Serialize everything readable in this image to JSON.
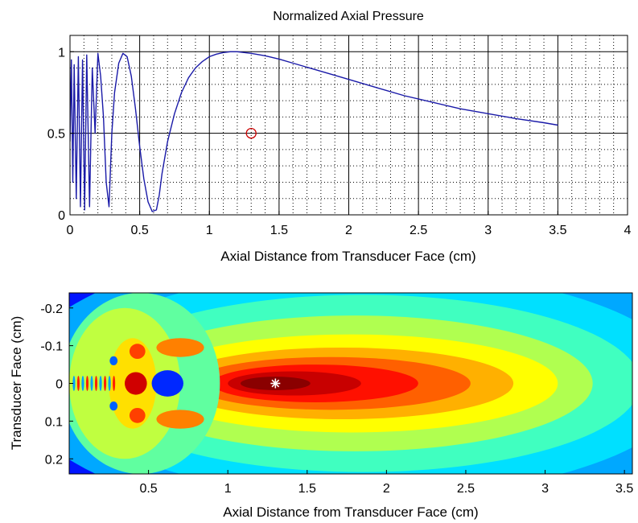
{
  "chart_data": [
    {
      "type": "line",
      "title": "Normalized Axial Pressure",
      "xlabel": "Axial Distance from Transducer Face (cm)",
      "ylabel": "",
      "xlim": [
        0,
        4
      ],
      "ylim": [
        0,
        1.1
      ],
      "xticks": [
        0,
        0.5,
        1,
        1.5,
        2,
        2.5,
        3,
        3.5,
        4
      ],
      "xtick_labels": [
        "0",
        "0.5",
        "1",
        "1.5",
        "2",
        "2.5",
        "3",
        "3.5",
        "4"
      ],
      "yticks": [
        0,
        0.5,
        1
      ],
      "ytick_labels": [
        "0",
        "0.5",
        "1"
      ],
      "grid": true,
      "series": [
        {
          "color": "#1a1aa8",
          "x": [
            0.0,
            0.01,
            0.02,
            0.03,
            0.045,
            0.06,
            0.075,
            0.09,
            0.105,
            0.12,
            0.14,
            0.16,
            0.18,
            0.2,
            0.22,
            0.24,
            0.26,
            0.28,
            0.3,
            0.32,
            0.35,
            0.38,
            0.41,
            0.44,
            0.47,
            0.5,
            0.53,
            0.56,
            0.59,
            0.62,
            0.64,
            0.66,
            0.7,
            0.75,
            0.8,
            0.85,
            0.9,
            0.95,
            1.0,
            1.05,
            1.1,
            1.15,
            1.2,
            1.25,
            1.3,
            1.4,
            1.5,
            1.6,
            1.8,
            2.0,
            2.2,
            2.4,
            2.6,
            2.8,
            3.0,
            3.2,
            3.4,
            3.5
          ],
          "y": [
            0.45,
            0.95,
            0.2,
            0.92,
            0.1,
            0.97,
            0.05,
            0.95,
            0.03,
            0.98,
            0.05,
            0.9,
            0.5,
            0.99,
            0.85,
            0.6,
            0.2,
            0.05,
            0.5,
            0.75,
            0.93,
            0.99,
            0.97,
            0.85,
            0.65,
            0.42,
            0.22,
            0.08,
            0.02,
            0.03,
            0.12,
            0.25,
            0.45,
            0.62,
            0.75,
            0.84,
            0.9,
            0.94,
            0.97,
            0.985,
            0.995,
            1.0,
            1.0,
            0.995,
            0.99,
            0.975,
            0.955,
            0.93,
            0.88,
            0.83,
            0.78,
            0.73,
            0.69,
            0.65,
            0.62,
            0.59,
            0.565,
            0.55
          ]
        }
      ],
      "markers": [
        {
          "x": 1.3,
          "y": 0.5,
          "symbol": "circle",
          "color": "#cc0000"
        }
      ]
    },
    {
      "type": "heatmap",
      "title": "",
      "xlabel": "Axial Distance from Transducer Face (cm)",
      "ylabel": "Transducer Face (cm)",
      "xlim": [
        0,
        3.55
      ],
      "ylim": [
        -0.24,
        0.24
      ],
      "y_reversed": true,
      "xticks": [
        0.5,
        1,
        1.5,
        2,
        2.5,
        3,
        3.5
      ],
      "xtick_labels": [
        "0.5",
        "1",
        "1.5",
        "2",
        "2.5",
        "3",
        "3.5"
      ],
      "yticks": [
        -0.2,
        -0.1,
        0,
        0.1,
        0.2
      ],
      "ytick_labels": [
        "-0.2",
        "-0.1",
        "0",
        "0.1",
        "0.2"
      ],
      "colormap": "jet",
      "field": "normalized pressure amplitude",
      "markers": [
        {
          "x": 1.3,
          "y": 0,
          "symbol": "asterisk",
          "color": "#ffffff"
        }
      ]
    }
  ]
}
